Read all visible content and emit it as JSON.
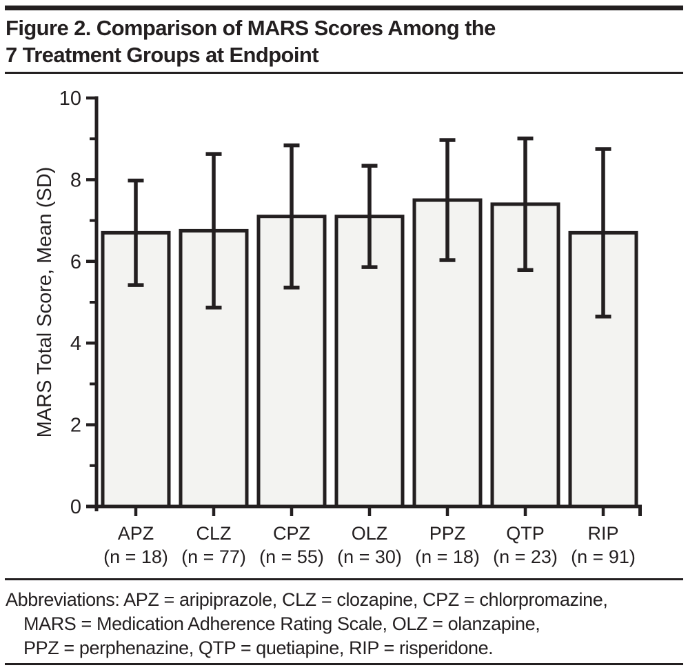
{
  "page": {
    "title_lines": [
      "Figure 2. Comparison of MARS Scores Among the",
      "7 Treatment Groups at Endpoint"
    ],
    "footnote_lines": [
      "Abbreviations: APZ = aripiprazole, CLZ = clozapine, CPZ = chlorpromazine,",
      "MARS = Medication Adherence Rating Scale, OLZ = olanzapine,",
      "PPZ = perphenazine, QTP = quetiapine, RIP = risperidone."
    ]
  },
  "colors": {
    "ink": "#231f20",
    "bar_fill": "#f3f3f1",
    "background": "#ffffff"
  },
  "chart_data": {
    "type": "bar",
    "title": "Figure 2. Comparison of MARS Scores Among the 7 Treatment Groups at Endpoint",
    "xlabel": "",
    "ylabel": "MARS Total Score, Mean (SD)",
    "ylim": [
      0,
      10
    ],
    "y_major_ticks": [
      0,
      2,
      4,
      6,
      8,
      10
    ],
    "y_minor_ticks": [
      1,
      3,
      5,
      7,
      9
    ],
    "grid": false,
    "legend": "none",
    "error_bars": "mean plus/minus SD",
    "categories": [
      "APZ",
      "CLZ",
      "CPZ",
      "OLZ",
      "PPZ",
      "QTP",
      "RIP"
    ],
    "n_labels": [
      "(n = 18)",
      "(n = 77)",
      "(n = 55)",
      "(n = 30)",
      "(n = 18)",
      "(n = 23)",
      "(n = 91)"
    ],
    "values": [
      6.7,
      6.75,
      7.1,
      7.1,
      7.5,
      7.4,
      6.7
    ],
    "sd": [
      1.28,
      1.88,
      1.74,
      1.24,
      1.47,
      1.61,
      2.05
    ]
  }
}
